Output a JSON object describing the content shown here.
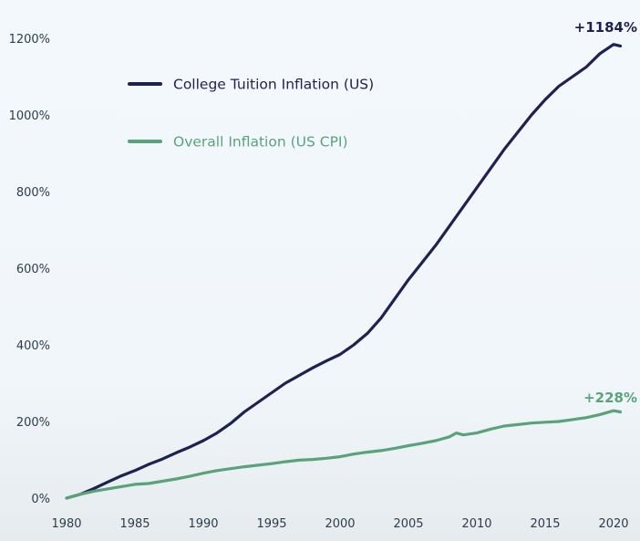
{
  "chart_data": {
    "type": "line",
    "xlim": [
      1980,
      2020.8
    ],
    "ylim": [
      0,
      1200
    ],
    "y_ticks": [
      0,
      200,
      400,
      600,
      800,
      1000,
      1200
    ],
    "y_tick_labels": [
      "0%",
      "200%",
      "400%",
      "600%",
      "800%",
      "1000%",
      "1200%"
    ],
    "x_ticks": [
      1980,
      1985,
      1990,
      1995,
      2000,
      2005,
      2010,
      2015,
      2020
    ],
    "x_tick_labels": [
      "1980",
      "1985",
      "1990",
      "1995",
      "2000",
      "2005",
      "2010",
      "2015",
      "2020"
    ],
    "grid": false,
    "legend_position": "top-left",
    "series": [
      {
        "name": "College Tuition Inflation (US)",
        "color": "#1c2350",
        "end_label": "+1184%",
        "x": [
          1980,
          1981,
          1982,
          1983,
          1984,
          1985,
          1986,
          1987,
          1988,
          1989,
          1990,
          1991,
          1992,
          1993,
          1994,
          1995,
          1996,
          1997,
          1998,
          1999,
          2000,
          2001,
          2002,
          2003,
          2004,
          2005,
          2006,
          2007,
          2008,
          2009,
          2010,
          2011,
          2012,
          2013,
          2014,
          2015,
          2016,
          2017,
          2018,
          2019,
          2020,
          2020.5
        ],
        "values": [
          0,
          10,
          25,
          42,
          58,
          72,
          88,
          102,
          118,
          133,
          150,
          170,
          195,
          225,
          250,
          275,
          300,
          320,
          340,
          358,
          375,
          400,
          430,
          470,
          520,
          570,
          615,
          660,
          710,
          760,
          810,
          860,
          910,
          955,
          1000,
          1040,
          1075,
          1100,
          1125,
          1160,
          1184,
          1180
        ]
      },
      {
        "name": "Overall Inflation (US CPI)",
        "color": "#5aa37a",
        "end_label": "+228%",
        "x": [
          1980,
          1981,
          1982,
          1983,
          1984,
          1985,
          1986,
          1987,
          1988,
          1989,
          1990,
          1991,
          1992,
          1993,
          1994,
          1995,
          1996,
          1997,
          1998,
          1999,
          2000,
          2001,
          2002,
          2003,
          2004,
          2005,
          2006,
          2007,
          2008,
          2008.5,
          2009,
          2010,
          2011,
          2012,
          2013,
          2014,
          2015,
          2016,
          2017,
          2018,
          2019,
          2020,
          2020.5
        ],
        "values": [
          0,
          10,
          18,
          24,
          30,
          36,
          38,
          44,
          50,
          57,
          65,
          72,
          77,
          82,
          86,
          90,
          95,
          99,
          101,
          104,
          108,
          115,
          120,
          124,
          130,
          137,
          143,
          150,
          160,
          170,
          165,
          170,
          180,
          188,
          192,
          196,
          198,
          200,
          205,
          210,
          218,
          228,
          225
        ]
      }
    ]
  }
}
